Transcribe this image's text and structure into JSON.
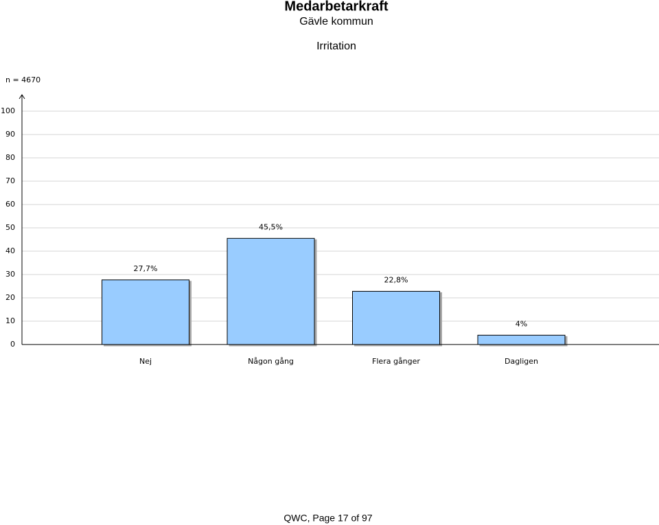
{
  "header": {
    "title": "Medarbetarkraft",
    "subtitle": "Gävle kommun"
  },
  "chart_data": {
    "type": "bar",
    "title": "Irritation",
    "annotation": "n = 4670",
    "categories": [
      "Nej",
      "Någon gång",
      "Flera gånger",
      "Dagligen"
    ],
    "values": [
      27.7,
      45.5,
      22.8,
      4
    ],
    "value_labels": [
      "27,7%",
      "45,5%",
      "22,8%",
      "4%"
    ],
    "color": "#99ccff",
    "ylim": [
      0,
      100
    ],
    "yticks": [
      0,
      10,
      20,
      30,
      40,
      50,
      60,
      70,
      80,
      90,
      100
    ],
    "grid": true
  },
  "footer": "QWC, Page 17 of 97"
}
